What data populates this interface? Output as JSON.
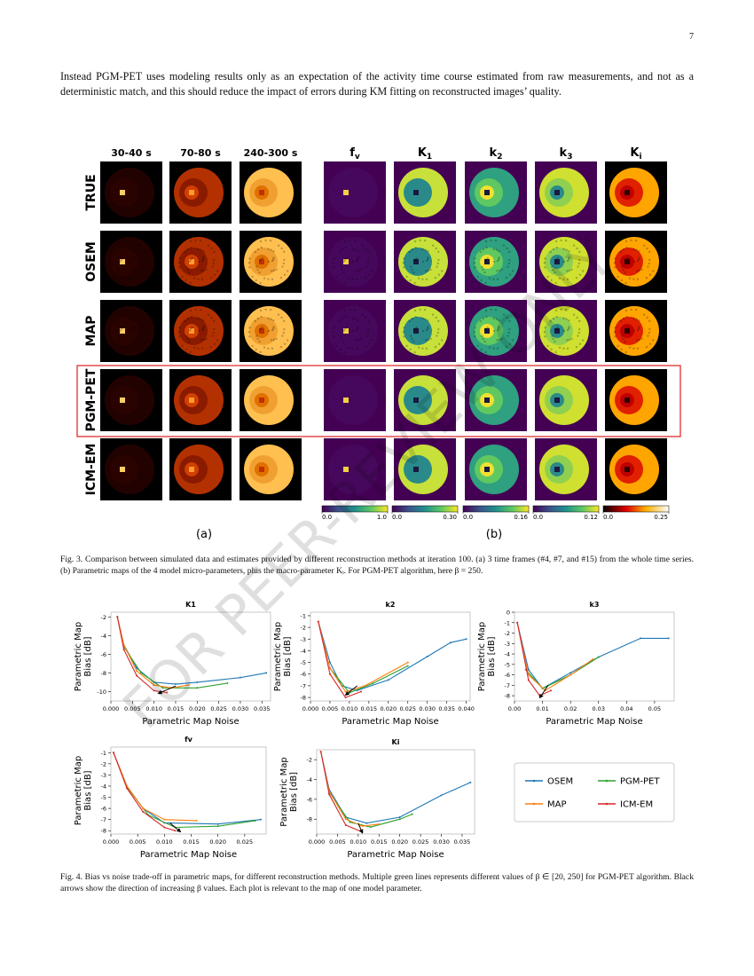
{
  "page_number": "7",
  "paragraph": "Instead PGM-PET uses modeling results only as an expectation of the activity time course estimated from raw measurements, and not as a deterministic match, and this should reduce the impact of errors during KM fitting on reconstructed images’ quality.",
  "watermark": "FOR PEER-REVIEW ONLY",
  "figure3": {
    "column_headers": [
      {
        "text": "30-40 s"
      },
      {
        "text": "70-80 s"
      },
      {
        "text": "240-300 s"
      },
      {
        "text": "f",
        "sub": "v"
      },
      {
        "text": "K",
        "sub": "1"
      },
      {
        "text": "k",
        "sub": "2"
      },
      {
        "text": "k",
        "sub": "3"
      },
      {
        "text": "K",
        "sub": "i"
      }
    ],
    "row_labels": [
      "TRUE",
      "OSEM",
      "MAP",
      "PGM-PET",
      "ICM-EM"
    ],
    "colorbars": [
      [
        {
          "value": 0,
          "label": "0.0"
        },
        {
          "value": 1,
          "label": "1.0"
        }
      ],
      [
        {
          "value": 0,
          "label": "0.0"
        },
        {
          "value": 0.3,
          "label": "0.30"
        }
      ],
      [
        {
          "value": 0,
          "label": "0.0"
        },
        0.16
      ],
      [
        {
          "value": 0,
          "label": "0.0"
        },
        0.12
      ],
      [
        {
          "value": 0,
          "label": "0.0"
        },
        0.25
      ]
    ],
    "subfigure_labels": [
      "(a)",
      "(b)"
    ],
    "caption": "Fig. 3.   Comparison between simulated data and estimates provided by different reconstruction methods at iteration 100. (a) 3 time frames (#4, #7, and #15) from the whole time series. (b) Parametric maps of the 4 model micro-parameters, plus the macro-parameter Kᵢ. For PGM-PET algorithm, here β = 250."
  },
  "figure4": {
    "legend": [
      {
        "name": "OSEM",
        "color": "#1f77b4"
      },
      {
        "name": "PGM-PET",
        "color": "#2ca02c"
      },
      {
        "name": "MAP",
        "color": "#ff7f0e"
      },
      {
        "name": "ICM-EM",
        "color": "#d62728"
      }
    ],
    "charts": [
      {
        "type": "line",
        "title": "K1",
        "xlabel": "Parametric Map Noise",
        "ylabel": [
          "Parametric Map",
          "Bias [dB]"
        ],
        "xlim": [
          0,
          0.037
        ],
        "xticks": [
          {
            "value": 0,
            "label": "0.000"
          },
          0.005,
          {
            "value": 0.01,
            "label": "0.010"
          },
          0.015,
          {
            "value": 0.02,
            "label": "0.020"
          },
          0.025,
          {
            "value": 0.03,
            "label": "0.030"
          },
          0.035
        ],
        "ylim": [
          -11,
          -1.5
        ],
        "yticks": [
          -10,
          -8,
          -6,
          -4,
          -2
        ],
        "series": [
          {
            "color": "#1f77b4",
            "x": [
              0.0015,
              0.003,
              0.006,
              0.01,
              0.015,
              0.02,
              0.03,
              0.036
            ],
            "values": [
              -2,
              -5,
              -7.5,
              -9,
              -9.2,
              -9,
              -8.5,
              -8
            ]
          },
          {
            "color": "#2ca02c",
            "x": [
              0.003,
              0.007,
              0.012,
              0.02,
              0.027
            ],
            "values": [
              -5.2,
              -8,
              -9.6,
              -9.6,
              -9.1
            ]
          },
          {
            "color": "#ff7f0e",
            "x": [
              0.0015,
              0.003,
              0.006,
              0.01,
              0.014,
              0.018
            ],
            "values": [
              -2,
              -5,
              -7.8,
              -9.3,
              -9.6,
              -9.3
            ]
          },
          {
            "color": "#d62728",
            "x": [
              0.0015,
              0.003,
              0.006,
              0.01,
              0.013
            ],
            "values": [
              -2,
              -5.5,
              -8.3,
              -9.9,
              -10.1
            ]
          }
        ]
      },
      {
        "type": "line",
        "title": "k2",
        "xlabel": "Parametric Map Noise",
        "ylabel": [
          "Parametric Map",
          "Bias [dB]"
        ],
        "xlim": [
          0,
          0.041
        ],
        "xticks": [
          {
            "value": 0,
            "label": "0.000"
          },
          0.005,
          {
            "value": 0.01,
            "label": "0.010"
          },
          0.015,
          {
            "value": 0.02,
            "label": "0.020"
          },
          0.025,
          {
            "value": 0.03,
            "label": "0.030"
          },
          0.035,
          {
            "value": 0.04,
            "label": "0.040"
          }
        ],
        "ylim": [
          -8.3,
          -0.7
        ],
        "yticks": [
          -1,
          -2,
          -3,
          -4,
          -5,
          -6,
          -7,
          -8
        ],
        "series": [
          {
            "color": "#1f77b4",
            "x": [
              0.002,
              0.005,
              0.008,
              0.012,
              0.02,
              0.03,
              0.036,
              0.04
            ],
            "values": [
              -1.5,
              -5,
              -7,
              -7.4,
              -6.5,
              -4.5,
              -3.3,
              -3
            ]
          },
          {
            "color": "#2ca02c",
            "x": [
              0.005,
              0.01,
              0.016,
              0.025
            ],
            "values": [
              -5.5,
              -7.6,
              -6.8,
              -5.3
            ]
          },
          {
            "color": "#ff7f0e",
            "x": [
              0.002,
              0.005,
              0.009,
              0.014,
              0.025
            ],
            "values": [
              -1.5,
              -5.5,
              -7.5,
              -7,
              -5
            ]
          },
          {
            "color": "#d62728",
            "x": [
              0.002,
              0.005,
              0.009,
              0.013
            ],
            "values": [
              -1.5,
              -6,
              -8,
              -7.5
            ]
          }
        ]
      },
      {
        "type": "line",
        "title": "k3",
        "xlabel": "Parametric Map Noise",
        "ylabel": [
          "Parametric Map",
          "Bias [dB]"
        ],
        "xlim": [
          0,
          0.057
        ],
        "xticks": [
          {
            "value": 0,
            "label": "0.00"
          },
          {
            "value": 0.01,
            "label": "0.01"
          },
          {
            "value": 0.02,
            "label": "0.02"
          },
          {
            "value": 0.03,
            "label": "0.03"
          },
          {
            "value": 0.04,
            "label": "0.04"
          },
          {
            "value": 0.05,
            "label": "0.05"
          }
        ],
        "ylim": [
          -8.5,
          0
        ],
        "yticks": [
          0,
          -1,
          -2,
          -3,
          -4,
          -5,
          -6,
          -7,
          -8
        ],
        "series": [
          {
            "color": "#1f77b4",
            "x": [
              0.001,
              0.005,
              0.01,
              0.02,
              0.03,
              0.045,
              0.055
            ],
            "values": [
              -1,
              -5.5,
              -7.3,
              -5.8,
              -4.3,
              -2.5,
              -2.5
            ]
          },
          {
            "color": "#2ca02c",
            "x": [
              0.004,
              0.01,
              0.02,
              0.03
            ],
            "values": [
              -5.5,
              -7.3,
              -6,
              -4.3
            ]
          },
          {
            "color": "#ff7f0e",
            "x": [
              0.001,
              0.005,
              0.011,
              0.02,
              0.028
            ],
            "values": [
              -1,
              -6,
              -7.5,
              -6,
              -4.5
            ]
          },
          {
            "color": "#d62728",
            "x": [
              0.001,
              0.005,
              0.009,
              0.013
            ],
            "values": [
              -1,
              -6.5,
              -8,
              -7.5
            ]
          }
        ]
      },
      {
        "type": "line",
        "title": "fv",
        "xlabel": "Parametric Map Noise",
        "ylabel": [
          "Parametric Map",
          "Bias [dB]"
        ],
        "xlim": [
          0,
          0.029
        ],
        "xticks": [
          {
            "value": 0,
            "label": "0.000"
          },
          0.005,
          {
            "value": 0.01,
            "label": "0.010"
          },
          0.015,
          {
            "value": 0.02,
            "label": "0.020"
          },
          0.025
        ],
        "ylim": [
          -8.3,
          -0.5
        ],
        "yticks": [
          -1,
          -2,
          -3,
          -4,
          -5,
          -6,
          -7,
          -8
        ],
        "series": [
          {
            "color": "#1f77b4",
            "x": [
              0.0005,
              0.003,
              0.006,
              0.01,
              0.02,
              0.028
            ],
            "values": [
              -1,
              -4,
              -6,
              -7.3,
              -7.4,
              -7
            ]
          },
          {
            "color": "#2ca02c",
            "x": [
              0.003,
              0.007,
              0.012,
              0.02,
              0.027
            ],
            "values": [
              -4.1,
              -6.6,
              -7.7,
              -7.6,
              -7.1
            ]
          },
          {
            "color": "#ff7f0e",
            "x": [
              0.0005,
              0.003,
              0.006,
              0.01,
              0.016
            ],
            "values": [
              -1,
              -4,
              -6,
              -7,
              -7.1
            ]
          },
          {
            "color": "#d62728",
            "x": [
              0.0005,
              0.003,
              0.006,
              0.01,
              0.012
            ],
            "values": [
              -1,
              -4.2,
              -6.3,
              -7.7,
              -8
            ]
          }
        ]
      },
      {
        "type": "line",
        "title": "Ki",
        "xlabel": "Parametric Map Noise",
        "ylabel": [
          "Parametric Map",
          "Bias [dB]"
        ],
        "xlim": [
          0,
          0.038
        ],
        "xticks": [
          {
            "value": 0,
            "label": "0.000"
          },
          0.005,
          {
            "value": 0.01,
            "label": "0.010"
          },
          0.015,
          {
            "value": 0.02,
            "label": "0.020"
          },
          0.025,
          {
            "value": 0.03,
            "label": "0.030"
          },
          0.035
        ],
        "ylim": [
          -9.5,
          -1
        ],
        "yticks": [
          -2,
          -4,
          -6,
          -8
        ],
        "series": [
          {
            "color": "#1f77b4",
            "x": [
              0.001,
              0.003,
              0.007,
              0.012,
              0.02,
              0.03,
              0.037
            ],
            "values": [
              -1.2,
              -5,
              -7.8,
              -8.4,
              -7.8,
              -5.6,
              -4.3
            ]
          },
          {
            "color": "#2ca02c",
            "x": [
              0.003,
              0.008,
              0.013,
              0.02,
              0.023
            ],
            "values": [
              -5.3,
              -8.3,
              -8.8,
              -8,
              -7.5
            ]
          },
          {
            "color": "#ff7f0e",
            "x": [
              0.001,
              0.003,
              0.007,
              0.011,
              0.015
            ],
            "values": [
              -1.2,
              -5.2,
              -8,
              -8.7,
              -8.5
            ]
          },
          {
            "color": "#d62728",
            "x": [
              0.001,
              0.003,
              0.007,
              0.011
            ],
            "values": [
              -1.2,
              -5.5,
              -8.6,
              -9.3
            ]
          }
        ]
      }
    ],
    "caption": "Fig. 4.  Bias vs noise trade-off in parametric maps, for different reconstruction methods. Multiple green lines represents different values of β ∈ [20, 250] for PGM-PET algorithm. Black arrows show the direction of increasing β values. Each plot is relevant to the map of one model parameter."
  }
}
